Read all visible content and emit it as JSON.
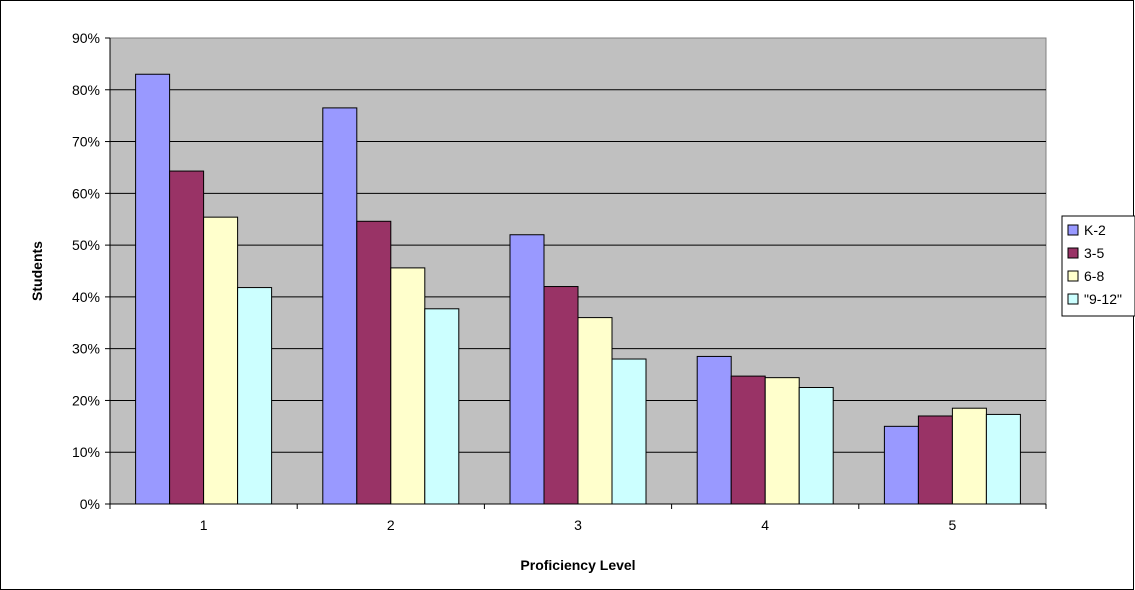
{
  "chart_data": {
    "type": "bar",
    "title": "",
    "xlabel": "Proficiency Level",
    "ylabel": "Students",
    "categories": [
      "1",
      "2",
      "3",
      "4",
      "5"
    ],
    "ylim": [
      0,
      90
    ],
    "y_ticks": [
      "0%",
      "10%",
      "20%",
      "30%",
      "40%",
      "50%",
      "60%",
      "70%",
      "80%",
      "90%"
    ],
    "grid": true,
    "legend_position": "right",
    "plot_background": "#c0c0c0",
    "series": [
      {
        "name": "K-2",
        "color": "#9999ff",
        "values": [
          83,
          76.5,
          52,
          28.5,
          15
        ]
      },
      {
        "name": "3-5",
        "color": "#993366",
        "values": [
          64.3,
          54.6,
          42,
          24.7,
          17
        ]
      },
      {
        "name": "6-8",
        "color": "#ffffcc",
        "values": [
          55.4,
          45.6,
          36,
          24.4,
          18.5
        ]
      },
      {
        "name": "\"9-12\"",
        "color": "#ccffff",
        "values": [
          41.8,
          37.7,
          28,
          22.5,
          17.3
        ]
      }
    ]
  }
}
